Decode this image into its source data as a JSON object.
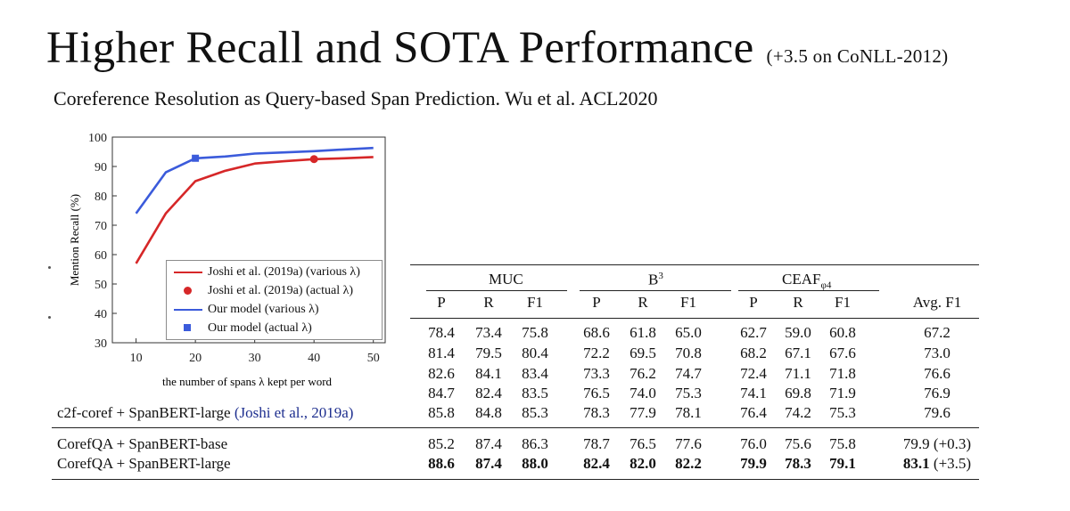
{
  "slide": {
    "title": "Higher Recall and SOTA Performance",
    "title_note": "(+3.5 on CoNLL-2012)",
    "subtitle": "Coreference Resolution as Query-based Span Prediction. Wu et al.  ACL2020"
  },
  "chart_data": {
    "type": "line",
    "title": "",
    "xlabel": "the number of spans λ kept per word",
    "ylabel": "Mention Recall (%)",
    "xlim": [
      6,
      52
    ],
    "ylim": [
      30,
      100
    ],
    "xticks": [
      10,
      20,
      30,
      40,
      50
    ],
    "yticks": [
      30,
      40,
      50,
      60,
      70,
      80,
      90,
      100
    ],
    "grid": false,
    "legend_position": "lower-right",
    "series": [
      {
        "name": "Joshi et al. (2019a) (various λ)",
        "color": "#d62728",
        "x": [
          10,
          15,
          20,
          25,
          30,
          35,
          40,
          45,
          50
        ],
        "y": [
          57,
          74,
          85,
          88.5,
          91,
          91.8,
          92.5,
          92.8,
          93.2
        ]
      },
      {
        "name": "Our model (various λ)",
        "color": "#3b5bdb",
        "x": [
          10,
          15,
          20,
          25,
          30,
          35,
          40,
          45,
          50
        ],
        "y": [
          74,
          88,
          92.8,
          93.4,
          94.4,
          94.8,
          95.2,
          95.8,
          96.3
        ]
      }
    ],
    "points": [
      {
        "name": "Joshi et al. (2019a) (actual λ)",
        "x": 40,
        "y": 92.5,
        "color": "#d62728",
        "marker": "circle"
      },
      {
        "name": "Our model (actual λ)",
        "x": 20,
        "y": 92.8,
        "color": "#3b5bdb",
        "marker": "square"
      }
    ]
  },
  "results_table": {
    "groups": [
      {
        "name": "MUC",
        "sup": "",
        "sub": ""
      },
      {
        "name": "B",
        "sup": "3",
        "sub": ""
      },
      {
        "name": "CEAF",
        "sup": "",
        "sub": "φ4"
      }
    ],
    "sub_headers": [
      "P",
      "R",
      "F1",
      "P",
      "R",
      "F1",
      "P",
      "R",
      "F1",
      "Avg. F1"
    ],
    "rows": [
      {
        "name": "",
        "cite": "",
        "values": [
          "78.4",
          "73.4",
          "75.8",
          "68.6",
          "61.8",
          "65.0",
          "62.7",
          "59.0",
          "60.8",
          "67.2"
        ]
      },
      {
        "name": "",
        "cite": "",
        "values": [
          "81.4",
          "79.5",
          "80.4",
          "72.2",
          "69.5",
          "70.8",
          "68.2",
          "67.1",
          "67.6",
          "73.0"
        ]
      },
      {
        "name": "",
        "cite": "",
        "values": [
          "82.6",
          "84.1",
          "83.4",
          "73.3",
          "76.2",
          "74.7",
          "72.4",
          "71.1",
          "71.8",
          "76.6"
        ]
      },
      {
        "name": "",
        "cite": "",
        "values": [
          "84.7",
          "82.4",
          "83.5",
          "76.5",
          "74.0",
          "75.3",
          "74.1",
          "69.8",
          "71.9",
          "76.9"
        ]
      },
      {
        "name": "c2f-coref + SpanBERT-large ",
        "cite": "(Joshi et al., 2019a)",
        "values": [
          "85.8",
          "84.8",
          "85.3",
          "78.3",
          "77.9",
          "78.1",
          "76.4",
          "74.2",
          "75.3",
          "79.6"
        ]
      },
      {
        "name": "CorefQA + SpanBERT-base",
        "cite": "",
        "values": [
          "85.2",
          "87.4",
          "86.3",
          "78.7",
          "76.5",
          "77.6",
          "76.0",
          "75.6",
          "75.8",
          "79.9 (+0.3)"
        ]
      },
      {
        "name": "CorefQA + SpanBERT-large",
        "cite": "",
        "values": [
          "88.6",
          "87.4",
          "88.0",
          "82.4",
          "82.0",
          "82.2",
          "79.9",
          "78.3",
          "79.1",
          "83.1"
        ],
        "bold": true,
        "avg_note": " (+3.5)"
      }
    ]
  }
}
